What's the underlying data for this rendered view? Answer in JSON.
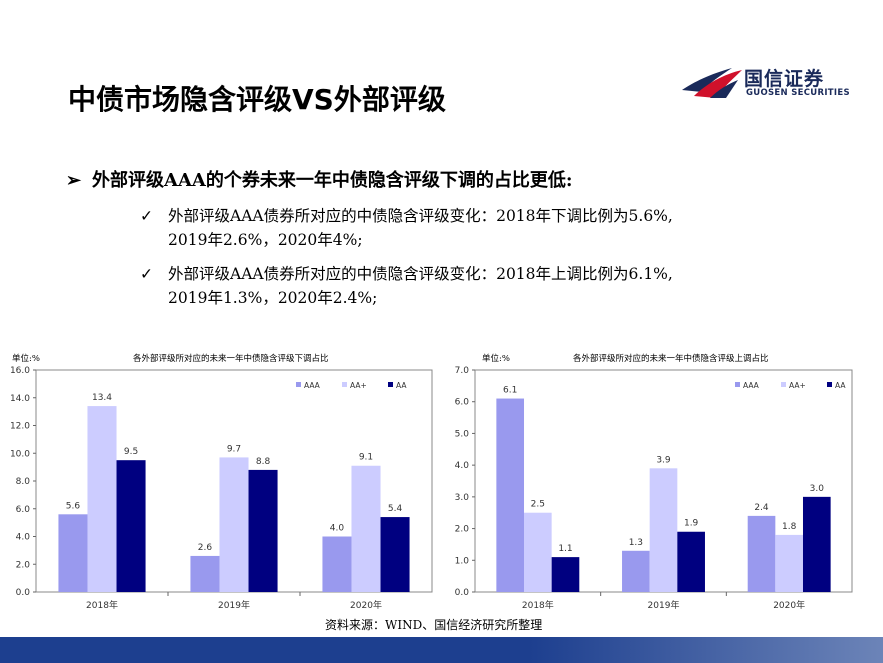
{
  "title": "中债市场隐含评级VS外部评级",
  "logo": {
    "cn": "国信证券",
    "en": "GUOSEN SECURITIES"
  },
  "bullet": "外部评级AAA的个券未来一年中债隐含评级下调的占比更低:",
  "points": [
    {
      "line1": "外部评级AAA债券所对应的中债隐含评级变化：2018年下调比例为5.6%,",
      "line2": "2019年2.6%，2020年4%;"
    },
    {
      "line1": "外部评级AAA债券所对应的中债隐含评级变化：2018年上调比例为6.1%,",
      "line2": "2019年1.3%，2020年2.4%;"
    }
  ],
  "source": "资料来源：WIND、国信经济研究所整理",
  "icons": {
    "bullet": "triangle-arrow-icon",
    "check": "check-icon"
  },
  "colors": {
    "AAA": "#9999ee",
    "AA+": "#ccccff",
    "AA": "#000080",
    "footer": "#1d3f8f",
    "logo_red": "#d0112b",
    "logo_navy": "#1a2a5a"
  },
  "chart_data": [
    {
      "type": "bar",
      "title": "各外部评级所对应的未来一年中债隐含评级下调占比",
      "unit": "单位:%",
      "categories": [
        "2018年",
        "2019年",
        "2020年"
      ],
      "series": [
        {
          "name": "AAA",
          "values": [
            5.6,
            2.6,
            4.0
          ]
        },
        {
          "name": "AA+",
          "values": [
            13.4,
            9.7,
            9.1
          ]
        },
        {
          "name": "AA",
          "values": [
            9.5,
            8.8,
            5.4
          ]
        }
      ],
      "ylim": [
        0,
        16
      ],
      "yticks": [
        "0.0",
        "2.0",
        "4.0",
        "6.0",
        "8.0",
        "10.0",
        "12.0",
        "14.0",
        "16.0"
      ],
      "legend": "top-right",
      "grid": false
    },
    {
      "type": "bar",
      "title": "各外部评级所对应的未来一年中债隐含评级上调占比",
      "unit": "单位:%",
      "categories": [
        "2018年",
        "2019年",
        "2020年"
      ],
      "series": [
        {
          "name": "AAA",
          "values": [
            6.1,
            1.3,
            2.4
          ]
        },
        {
          "name": "AA+",
          "values": [
            2.5,
            3.9,
            1.8
          ]
        },
        {
          "name": "AA",
          "values": [
            1.1,
            1.9,
            3.0
          ]
        }
      ],
      "ylim": [
        0,
        7
      ],
      "yticks": [
        "0.0",
        "1.0",
        "2.0",
        "3.0",
        "4.0",
        "5.0",
        "6.0",
        "7.0"
      ],
      "legend": "top-right",
      "grid": false
    }
  ]
}
